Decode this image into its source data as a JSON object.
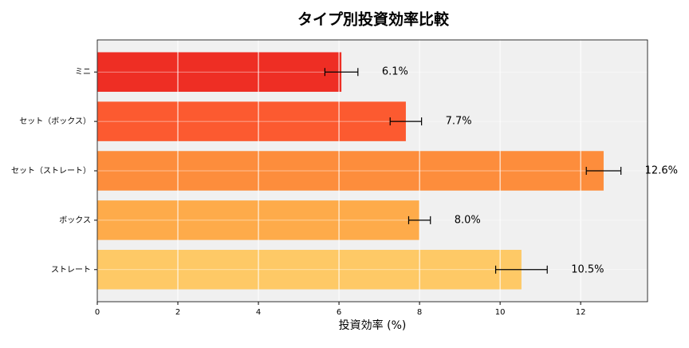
{
  "chart_data": {
    "type": "barh",
    "title": "タイプ別投資効率比較",
    "xlabel": "投資効率 (%)",
    "categories": [
      "ミニ",
      "セット（ボックス）",
      "セット（ストレート）",
      "ボックス",
      "ストレート"
    ],
    "values": [
      6.06,
      7.66,
      12.57,
      8.0,
      10.53
    ],
    "errors": [
      0.41,
      0.39,
      0.43,
      0.27,
      0.64
    ],
    "value_labels": [
      "6.1%",
      "7.7%",
      "12.6%",
      "8.0%",
      "10.5%"
    ],
    "colors": [
      "#ee2e24",
      "#fc5a30",
      "#fd8d3c",
      "#feab4a",
      "#fec966"
    ],
    "xlim": [
      0,
      13.66
    ],
    "xticks": [
      0,
      2,
      4,
      6,
      8,
      10,
      12
    ],
    "grid": true
  }
}
